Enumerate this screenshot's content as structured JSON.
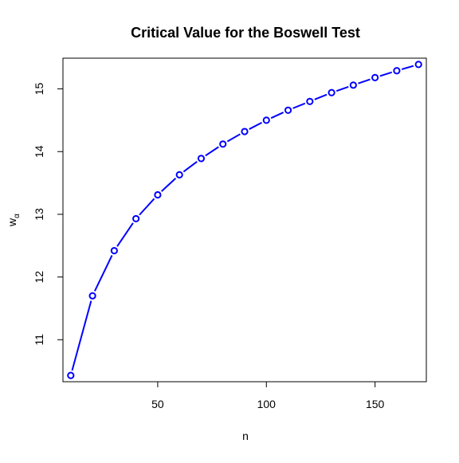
{
  "chart_data": {
    "type": "line",
    "title": "Critical Value for the Boswell Test",
    "xlabel": "n",
    "ylabel": "w",
    "ylabel_subscript": "α",
    "xlim": [
      6.4,
      173.6
    ],
    "ylim": [
      10.33,
      15.49
    ],
    "xticks": [
      50,
      100,
      150
    ],
    "yticks": [
      11,
      12,
      13,
      14,
      15
    ],
    "grid": false,
    "legend": "none",
    "line_style": "dashed (short dashes with line through points, type b)",
    "series": [
      {
        "color": "#0000ff",
        "x": [
          10,
          20,
          30,
          40,
          50,
          60,
          70,
          80,
          90,
          100,
          110,
          120,
          130,
          140,
          150,
          160,
          170
        ],
        "y": [
          10.43,
          11.7,
          12.42,
          12.93,
          13.31,
          13.63,
          13.89,
          14.12,
          14.32,
          14.5,
          14.66,
          14.8,
          14.94,
          15.06,
          15.18,
          15.29,
          15.39
        ]
      }
    ]
  }
}
